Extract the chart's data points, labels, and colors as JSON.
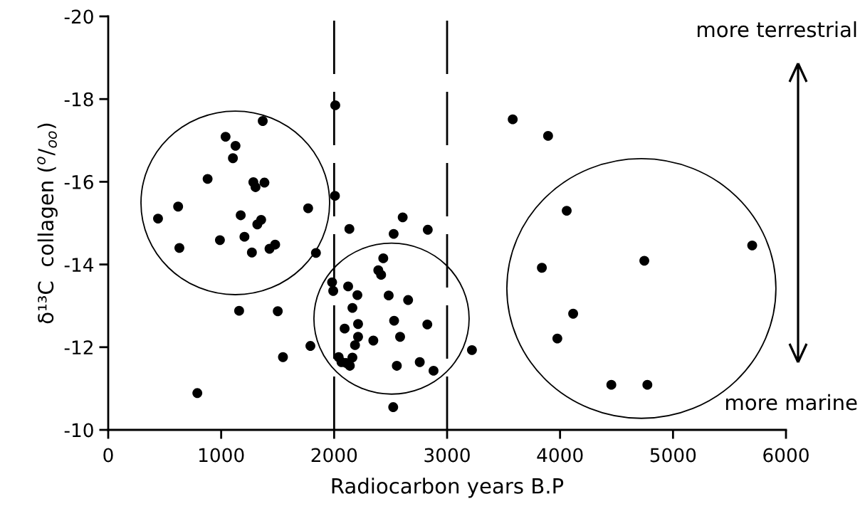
{
  "chart_data": {
    "type": "scatter",
    "xlabel": "Radiocarbon years B.P",
    "ylabel": "δ¹³C  collagen ($^{o}$/$_{oo}$)",
    "annotations": [
      "more terrestrial",
      "more marine"
    ],
    "x": [
      1368,
      1039,
      1127,
      1104,
      880,
      1285,
      1304,
      1383,
      2010,
      2007,
      619,
      441,
      1770,
      1173,
      1354,
      1320,
      1206,
      989,
      630,
      1478,
      1428,
      1272,
      1839,
      1159,
      1501,
      1790,
      1547,
      789,
      1982,
      1992,
      2135,
      2527,
      2607,
      2829,
      3581,
      3894,
      4059,
      5701,
      4746,
      3839,
      4116,
      3976,
      4454,
      4773,
      2435,
      2391,
      2416,
      2124,
      2206,
      2483,
      2655,
      2162,
      2531,
      2825,
      2212,
      2093,
      2212,
      2584,
      2347,
      2185,
      3220,
      2040,
      2162,
      2065,
      2105,
      2139,
      2555,
      2758,
      2880,
      2523
    ],
    "values": [
      -17.47,
      -17.09,
      -16.87,
      -16.57,
      -16.07,
      -15.99,
      -15.87,
      -15.98,
      -17.85,
      -15.66,
      -15.4,
      -15.11,
      -15.36,
      -15.19,
      -15.08,
      -14.97,
      -14.67,
      -14.59,
      -14.4,
      -14.48,
      -14.38,
      -14.29,
      -14.28,
      -12.88,
      -12.87,
      -12.03,
      -11.76,
      -10.89,
      -13.57,
      -13.36,
      -14.86,
      -14.74,
      -15.14,
      -14.84,
      -17.51,
      -17.11,
      -15.3,
      -14.46,
      -14.09,
      -13.92,
      -12.81,
      -12.21,
      -11.09,
      -11.09,
      -14.15,
      -13.86,
      -13.75,
      -13.47,
      -13.26,
      -13.25,
      -13.14,
      -12.95,
      -12.64,
      -12.55,
      -12.56,
      -12.45,
      -12.25,
      -12.25,
      -12.16,
      -12.05,
      -11.93,
      -11.76,
      -11.75,
      -11.64,
      -11.62,
      -11.55,
      -11.55,
      -11.64,
      -11.43,
      -10.55
    ],
    "color": "#000000",
    "marker": "circle",
    "xlim": [
      0,
      6000
    ],
    "xticks": [
      0,
      1000,
      2000,
      3000,
      4000,
      5000,
      6000
    ],
    "ylim": [
      -10,
      -20
    ],
    "yticks": [
      -10,
      -12,
      -14,
      -16,
      -18,
      -20
    ],
    "ref_lines": [
      {
        "axis": "x",
        "value": 2000,
        "color": "#000000",
        "line_style": "dashed"
      },
      {
        "axis": "x",
        "value": 3000,
        "color": "#000000",
        "line_style": "dashed"
      }
    ]
  }
}
